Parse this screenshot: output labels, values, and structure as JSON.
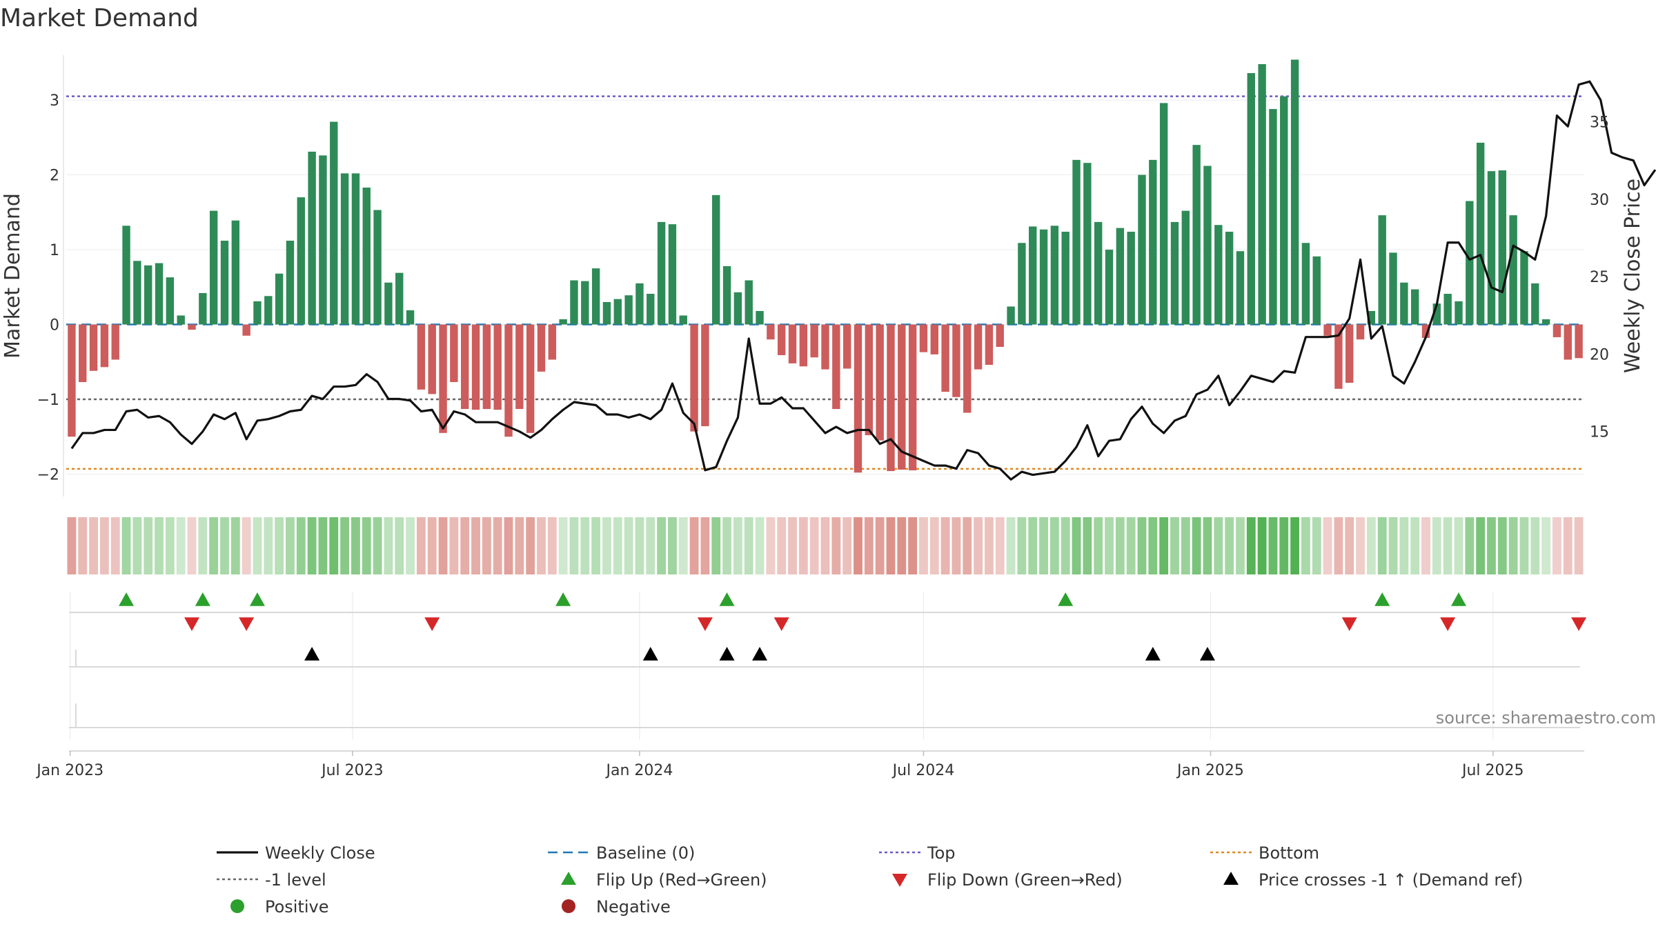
{
  "chart_data": {
    "type": "bar",
    "title": "Market Demand",
    "ylabel": "Market Demand",
    "y2label": "Weekly Close Price",
    "source": "source: sharemaestro.com",
    "x_start": "2023-01-02",
    "x_step_days": 7,
    "x_ticks": [
      {
        "date": "2023-01-01",
        "label": "Jan 2023"
      },
      {
        "date": "2023-07-01",
        "label": "Jul 2023"
      },
      {
        "date": "2024-01-01",
        "label": "Jan 2024"
      },
      {
        "date": "2024-07-01",
        "label": "Jul 2024"
      },
      {
        "date": "2025-01-01",
        "label": "Jan 2025"
      },
      {
        "date": "2025-07-01",
        "label": "Jul 2025"
      }
    ],
    "ylim": [
      -2.3,
      3.6
    ],
    "y_ticks": [
      {
        "value": 3,
        "label": "3"
      },
      {
        "value": 2,
        "label": "2"
      },
      {
        "value": 1,
        "label": "1"
      },
      {
        "value": 0,
        "label": "0"
      },
      {
        "value": -1,
        "label": "−1"
      },
      {
        "value": -2,
        "label": "−2"
      }
    ],
    "y2lim": [
      10.8,
      39.3
    ],
    "y2_ticks": [
      {
        "value": 35,
        "label": "35"
      },
      {
        "value": 30,
        "label": "30"
      },
      {
        "value": 25,
        "label": "25"
      },
      {
        "value": 20,
        "label": "20"
      },
      {
        "value": 15,
        "label": "15"
      }
    ],
    "levels": {
      "top": 3.05,
      "bottom": -1.93,
      "minus_one": -1.0,
      "baseline": 0
    },
    "series": [
      {
        "name": "Market Demand",
        "values": [
          -1.5,
          -0.77,
          -0.62,
          -0.57,
          -0.47,
          1.32,
          0.85,
          0.79,
          0.82,
          0.63,
          0.12,
          -0.07,
          0.42,
          1.52,
          1.12,
          1.39,
          -0.15,
          0.31,
          0.38,
          0.68,
          1.12,
          1.7,
          2.31,
          2.26,
          2.71,
          2.02,
          2.02,
          1.83,
          1.53,
          0.56,
          0.69,
          0.19,
          -0.87,
          -0.93,
          -1.45,
          -0.77,
          -1.13,
          -1.14,
          -1.13,
          -1.14,
          -1.5,
          -1.13,
          -1.45,
          -0.63,
          -0.47,
          0.07,
          0.59,
          0.58,
          0.75,
          0.3,
          0.34,
          0.39,
          0.55,
          0.41,
          1.37,
          1.34,
          0.12,
          -1.43,
          -1.36,
          1.73,
          0.78,
          0.43,
          0.59,
          0.18,
          -0.2,
          -0.41,
          -0.52,
          -0.56,
          -0.44,
          -0.6,
          -1.13,
          -0.59,
          -1.98,
          -1.48,
          -1.55,
          -1.96,
          -1.94,
          -1.95,
          -0.37,
          -0.4,
          -0.9,
          -0.97,
          -1.18,
          -0.6,
          -0.54,
          -0.3,
          0.24,
          1.09,
          1.31,
          1.27,
          1.32,
          1.24,
          2.2,
          2.16,
          1.37,
          1.0,
          1.29,
          1.24,
          2.0,
          2.2,
          2.96,
          1.37,
          1.52,
          2.4,
          2.12,
          1.33,
          1.24,
          0.98,
          3.36,
          3.48,
          2.88,
          3.05,
          3.54,
          1.09,
          0.91,
          -0.15,
          -0.86,
          -0.78,
          -0.2,
          0.18,
          1.46,
          0.96,
          0.56,
          0.47,
          -0.18,
          0.28,
          0.41,
          0.31,
          1.65,
          2.43,
          2.05,
          2.06,
          1.46,
          0.98,
          0.55,
          0.07,
          -0.17,
          -0.47,
          -0.45
        ]
      },
      {
        "name": "Weekly Close",
        "values": [
          13.9,
          14.9,
          14.9,
          15.1,
          15.1,
          16.3,
          16.4,
          15.9,
          16.0,
          15.6,
          14.8,
          14.2,
          15.0,
          16.1,
          15.8,
          16.2,
          14.5,
          15.7,
          15.8,
          16.0,
          16.3,
          16.4,
          17.3,
          17.1,
          17.9,
          17.9,
          18.0,
          18.7,
          18.2,
          17.1,
          17.1,
          17.0,
          16.3,
          16.4,
          15.2,
          16.3,
          16.1,
          15.6,
          15.6,
          15.6,
          15.3,
          15.0,
          14.6,
          15.1,
          15.8,
          16.4,
          16.9,
          16.8,
          16.7,
          16.1,
          16.1,
          15.9,
          16.1,
          15.8,
          16.4,
          18.1,
          16.2,
          15.5,
          12.5,
          12.7,
          14.4,
          15.9,
          21.0,
          16.8,
          16.8,
          17.2,
          16.5,
          16.5,
          15.7,
          14.9,
          15.3,
          14.9,
          15.1,
          15.1,
          14.2,
          14.5,
          13.7,
          13.4,
          13.1,
          12.8,
          12.8,
          12.6,
          13.8,
          13.6,
          12.8,
          12.6,
          11.9,
          12.4,
          12.2,
          12.3,
          12.4,
          13.1,
          14.0,
          15.4,
          13.4,
          14.4,
          14.5,
          15.8,
          16.6,
          15.5,
          14.9,
          15.7,
          16.0,
          17.4,
          17.7,
          18.6,
          16.7,
          17.6,
          18.6,
          18.4,
          18.2,
          18.9,
          18.8,
          21.1,
          21.1,
          21.1,
          21.2,
          22.3,
          26.1,
          21.0,
          21.8,
          18.6,
          18.1,
          19.5,
          21.1,
          23.2,
          27.2,
          27.2,
          26.1,
          26.4,
          24.3,
          24.0,
          27.0,
          26.6,
          26.1,
          28.9,
          35.4,
          34.7,
          37.4,
          37.6,
          36.4,
          33.0,
          32.7,
          32.5,
          30.9,
          31.9
        ]
      }
    ],
    "flip_up": [
      "2023-02-06",
      "2023-03-27",
      "2023-05-01",
      "2023-11-13",
      "2024-02-26",
      "2024-09-30",
      "2025-04-21",
      "2025-06-09"
    ],
    "flip_down": [
      "2023-03-20",
      "2023-04-24",
      "2023-08-21",
      "2024-02-12",
      "2024-04-01",
      "2025-03-31",
      "2025-06-02",
      "2025-08-25"
    ],
    "price_cross": [
      "2023-06-05",
      "2024-01-08",
      "2024-02-26",
      "2024-03-18",
      "2024-11-25",
      "2024-12-30"
    ],
    "legend": [
      {
        "label": "Weekly Close",
        "kind": "line",
        "color": "#111111"
      },
      {
        "label": "Baseline (0)",
        "kind": "dash",
        "color": "#1f77b4"
      },
      {
        "label": "Top",
        "kind": "dot",
        "color": "#6a5acd"
      },
      {
        "label": "Bottom",
        "kind": "dot",
        "color": "#e0881f"
      },
      {
        "label": "-1 level",
        "kind": "dot",
        "color": "#666666"
      },
      {
        "label": "Flip Up (Red→Green)",
        "kind": "tri-up",
        "color": "#2ca02c"
      },
      {
        "label": "Flip Down (Green→Red)",
        "kind": "tri-down",
        "color": "#d62728"
      },
      {
        "label": "Price crosses -1 ↑ (Demand ref)",
        "kind": "tri-up",
        "color": "#000000"
      },
      {
        "label": "Positive",
        "kind": "circle",
        "color": "#2ca02c"
      },
      {
        "label": "Negative",
        "kind": "circle",
        "color": "#a32323"
      }
    ],
    "colors": {
      "positive_bar": "#2e8b57",
      "negative_bar": "#cd5c5c",
      "price_line": "#111111",
      "heat_pos": "#2ca02c",
      "heat_neg": "#c0392b"
    }
  }
}
